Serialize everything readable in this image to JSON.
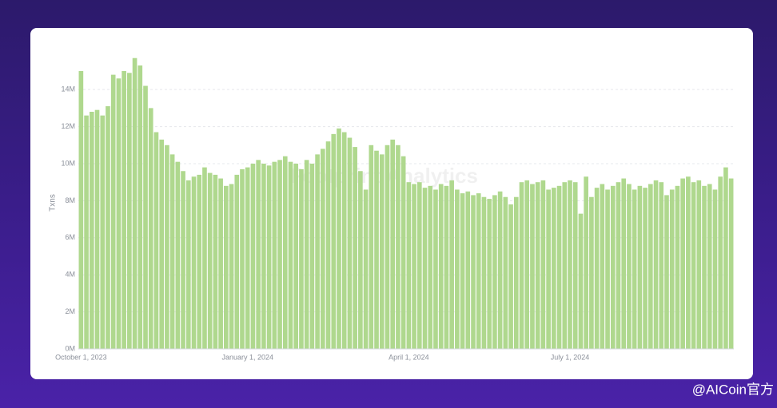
{
  "chart_data": {
    "type": "bar",
    "y_label": "Txns",
    "watermark": "Footprint Analytics",
    "credit": "@AICoin官方",
    "color": "#afd88e",
    "grid": true,
    "ylim": [
      0,
      15.8
    ],
    "yticks": [
      {
        "value": 0,
        "label": "0M"
      },
      {
        "value": 2,
        "label": "2M"
      },
      {
        "value": 4,
        "label": "4M"
      },
      {
        "value": 6,
        "label": "6M"
      },
      {
        "value": 8,
        "label": "8M"
      },
      {
        "value": 10,
        "label": "10M"
      },
      {
        "value": 12,
        "label": "12M"
      },
      {
        "value": 14,
        "label": "14M"
      }
    ],
    "categories": [
      "October 1, 2023",
      null,
      null,
      null,
      null,
      null,
      null,
      null,
      null,
      null,
      null,
      null,
      null,
      null,
      null,
      null,
      null,
      null,
      null,
      null,
      null,
      null,
      null,
      null,
      null,
      null,
      null,
      null,
      null,
      null,
      null,
      "January 1, 2024",
      null,
      null,
      null,
      null,
      null,
      null,
      null,
      null,
      null,
      null,
      null,
      null,
      null,
      null,
      null,
      null,
      null,
      null,
      null,
      null,
      null,
      null,
      null,
      null,
      null,
      null,
      null,
      null,
      null,
      "April 1, 2024",
      null,
      null,
      null,
      null,
      null,
      null,
      null,
      null,
      null,
      null,
      null,
      null,
      null,
      null,
      null,
      null,
      null,
      null,
      null,
      null,
      null,
      null,
      null,
      null,
      null,
      null,
      null,
      null,
      null,
      "July 1, 2024",
      null,
      null,
      null,
      null,
      null,
      null,
      null,
      null,
      null,
      null,
      null,
      null,
      null,
      null,
      null,
      null,
      null,
      null,
      null,
      null,
      null,
      null,
      null,
      null,
      null,
      null,
      null,
      null,
      null,
      null
    ],
    "values": [
      15.0,
      12.6,
      12.8,
      12.9,
      12.6,
      13.1,
      14.8,
      14.6,
      15.0,
      14.9,
      15.7,
      15.3,
      14.2,
      13.0,
      11.7,
      11.3,
      11.0,
      10.5,
      10.1,
      9.6,
      9.1,
      9.3,
      9.4,
      9.8,
      9.5,
      9.4,
      9.2,
      8.8,
      8.9,
      9.4,
      9.7,
      9.8,
      10.0,
      10.2,
      10.0,
      9.9,
      10.1,
      10.2,
      10.4,
      10.1,
      10.0,
      9.7,
      10.2,
      10.0,
      10.5,
      10.8,
      11.2,
      11.6,
      11.9,
      11.7,
      11.4,
      10.9,
      9.6,
      8.6,
      11.0,
      10.7,
      10.5,
      11.0,
      11.3,
      11.0,
      10.4,
      9.0,
      8.9,
      9.0,
      8.7,
      8.8,
      8.6,
      8.9,
      8.8,
      9.1,
      8.6,
      8.4,
      8.5,
      8.3,
      8.4,
      8.2,
      8.1,
      8.3,
      8.5,
      8.2,
      7.8,
      8.2,
      9.0,
      9.1,
      8.9,
      9.0,
      9.1,
      8.6,
      8.7,
      8.8,
      9.0,
      9.1,
      9.0,
      7.3,
      9.3,
      8.2,
      8.7,
      8.9,
      8.6,
      8.8,
      9.0,
      9.2,
      8.9,
      8.6,
      8.8,
      8.7,
      8.9,
      9.1,
      9.0,
      8.3,
      8.6,
      8.8,
      9.2,
      9.3,
      9.0,
      9.1,
      8.8,
      8.9,
      8.6,
      9.3,
      9.8,
      9.2
    ]
  }
}
